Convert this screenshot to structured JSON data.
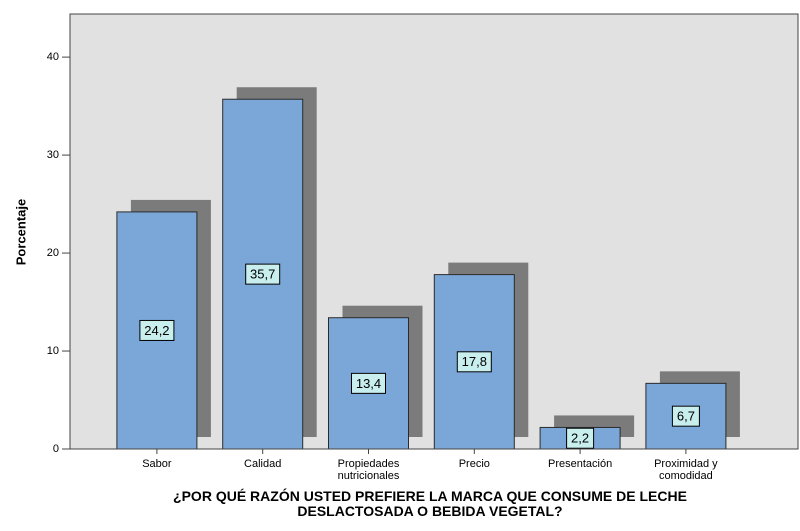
{
  "chart_data": {
    "type": "bar",
    "xlabel": "¿POR QUÉ RAZÓN USTED PREFIERE LA MARCA QUE CONSUME DE LECHE DESLACTOSADA O BEBIDA VEGETAL?",
    "ylabel": "Porcentaje",
    "categories": [
      "Sabor",
      "Calidad",
      "Propiedades nutricionales",
      "Precio",
      "Presentación",
      "Proximidad y comodidad"
    ],
    "values": [
      24.2,
      35.7,
      13.4,
      17.8,
      2.2,
      6.7
    ],
    "value_labels": [
      "24,2",
      "35,7",
      "13,4",
      "17,8",
      "2,2",
      "6,7"
    ],
    "color": "#7ba7d8",
    "shadow_color": "#7b7b7b",
    "ylim": [
      0,
      44.4
    ],
    "yticks": [
      0,
      10,
      20,
      30,
      40
    ],
    "grid": false
  }
}
